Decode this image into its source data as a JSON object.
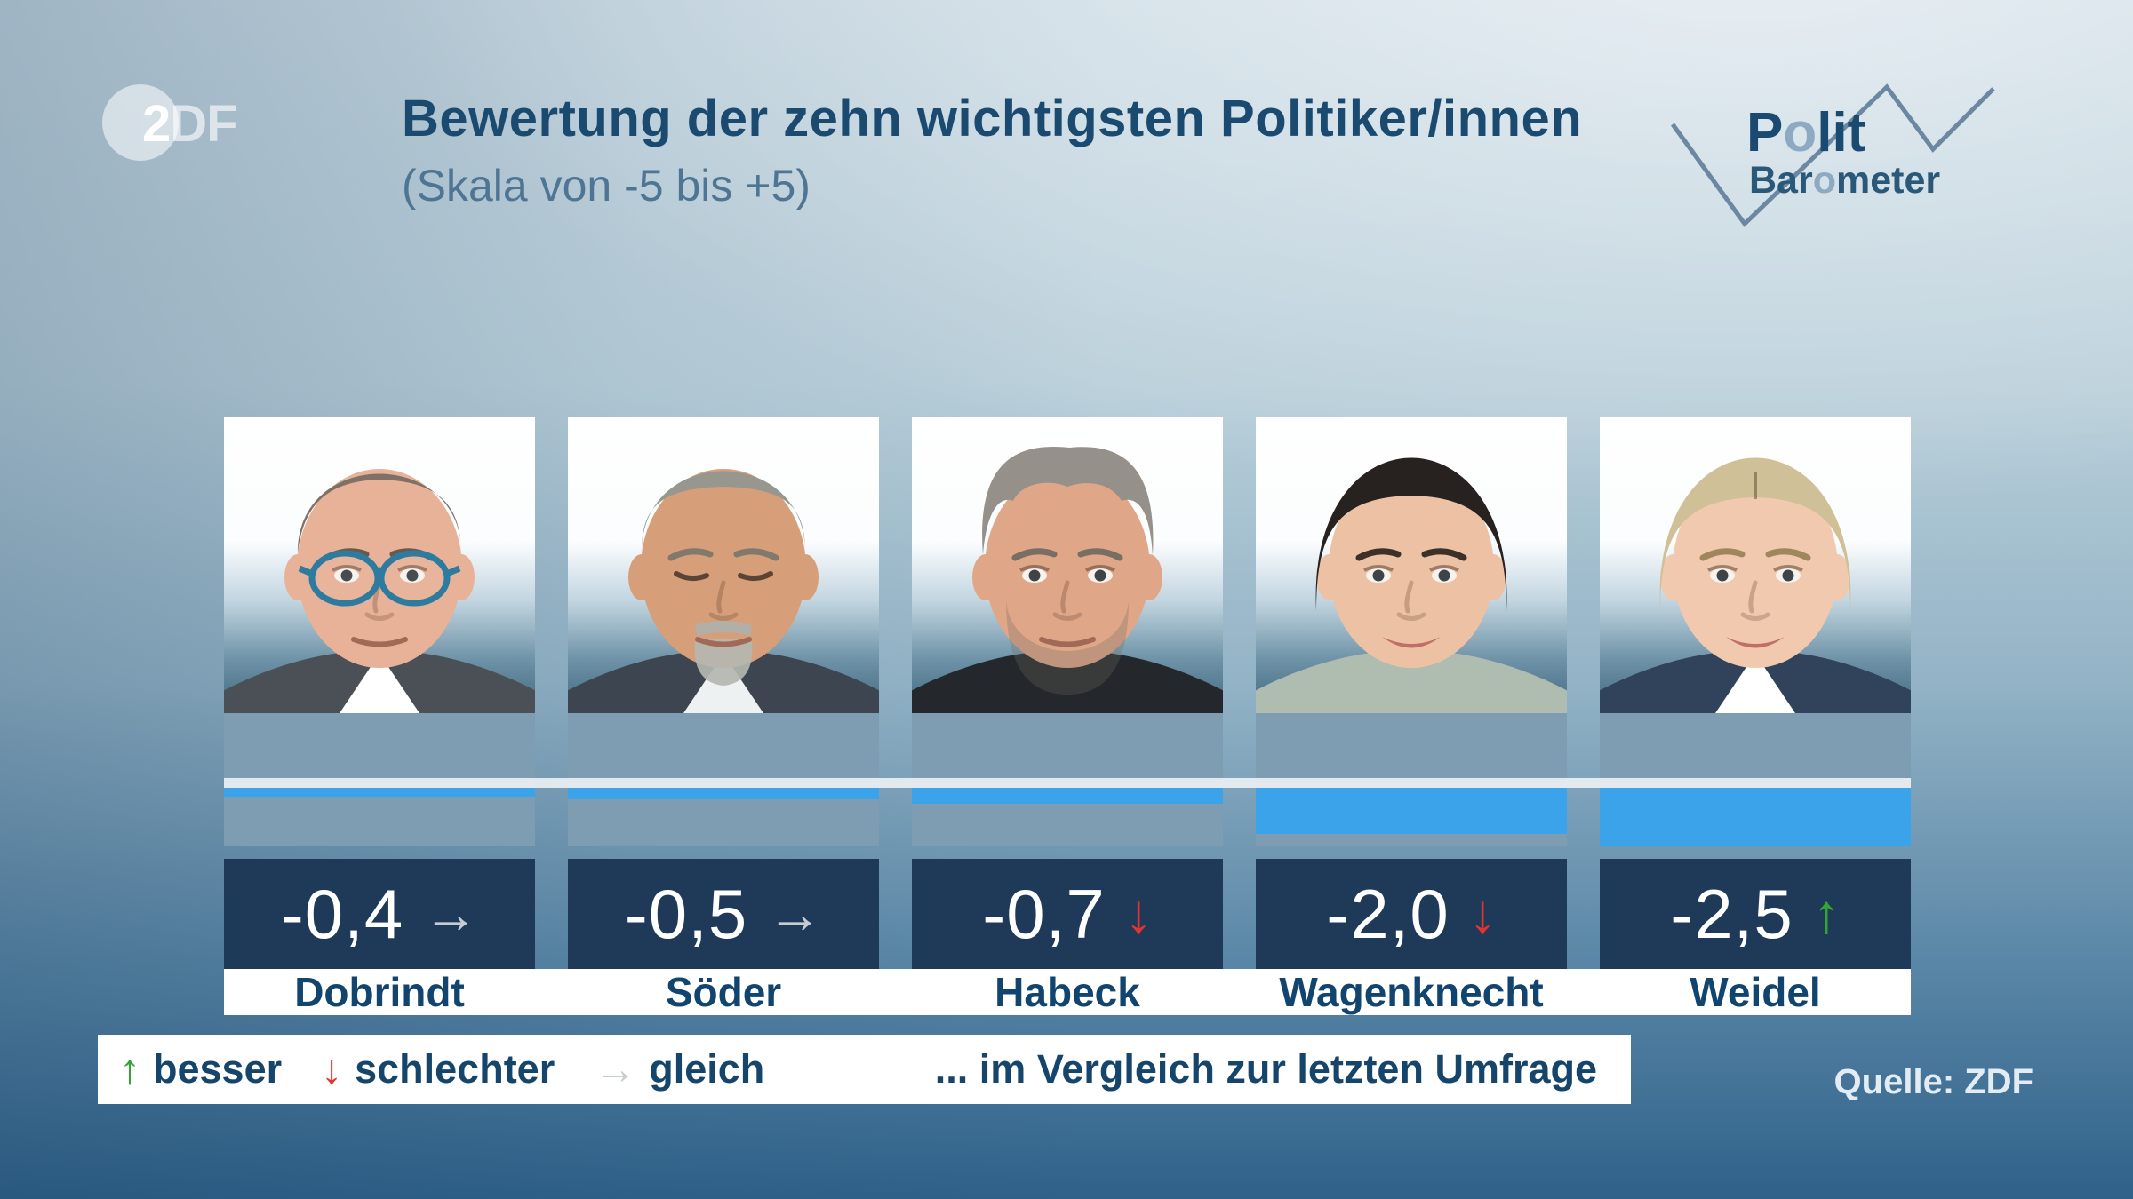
{
  "header": {
    "zdf": {
      "part_bold": "2",
      "part_light": "DF"
    },
    "title": "Bewertung der zehn wichtigsten Politiker/innen",
    "subtitle": "(Skala von -5 bis +5)",
    "brand": {
      "polit_pre": "P",
      "polit_o": "o",
      "polit_post": "lit",
      "baro_pre": "Bar",
      "baro_o": "o",
      "baro_post": "meter"
    }
  },
  "chart_data": {
    "type": "bar",
    "title": "Bewertung der zehn wichtigsten Politiker/innen",
    "subtitle": "(Skala von -5 bis +5)",
    "scale_range": [
      -5,
      5
    ],
    "bar_visible_range": [
      0,
      -2.5
    ],
    "categories": [
      "Dobrindt",
      "Söder",
      "Habeck",
      "Wagenknecht",
      "Weidel"
    ],
    "values": [
      -0.4,
      -0.5,
      -0.7,
      -2.0,
      -2.5
    ],
    "value_labels": [
      "-0,4",
      "-0,5",
      "-0,7",
      "-2,0",
      "-2,5"
    ],
    "trends": [
      "gleich",
      "gleich",
      "schlechter",
      "schlechter",
      "besser"
    ],
    "legend_position": "bottom"
  },
  "people": [
    {
      "name": "Dobrindt",
      "value_label": "-0,4",
      "value": -0.4,
      "trend": "same",
      "portrait": {
        "skin": "#e7b297",
        "hair": "#7f7165",
        "brow": "rgba(84,72,60,0.85)",
        "hairstyle": "receding",
        "top": "#4b5057",
        "shirt": "#ffffff",
        "glasses": true,
        "facial_hair": "none",
        "eyes": "open",
        "lips": false
      }
    },
    {
      "name": "Söder",
      "value_label": "-0,5",
      "value": -0.5,
      "trend": "same",
      "portrait": {
        "skin": "#d69e79",
        "hair": "#98978f",
        "brow": "rgba(120,116,106,0.9)",
        "hairstyle": "short",
        "top": "#3c4550",
        "shirt": "#eef1f2",
        "glasses": false,
        "facial_hair": "goatee",
        "eyes": "squint",
        "lips": false
      }
    },
    {
      "name": "Habeck",
      "value_label": "-0,7",
      "value": -0.7,
      "trend": "down",
      "portrait": {
        "skin": "#dfa688",
        "hair": "#96908a",
        "brow": "rgba(110,104,96,0.9)",
        "hairstyle": "tousled",
        "top": "#24282c",
        "shirt": null,
        "glasses": false,
        "facial_hair": "stubble",
        "eyes": "open",
        "lips": false
      }
    },
    {
      "name": "Wagenknecht",
      "value_label": "-2,0",
      "value": -2.0,
      "trend": "down",
      "portrait": {
        "skin": "#edc2a4",
        "hair": "#27211f",
        "brow": "rgba(40,32,28,0.9)",
        "hairstyle": "slicked",
        "top": "#afbcb0",
        "shirt": null,
        "glasses": false,
        "facial_hair": "none",
        "eyes": "open",
        "lips": true
      }
    },
    {
      "name": "Weidel",
      "value_label": "-2,5",
      "value": -2.5,
      "trend": "up",
      "portrait": {
        "skin": "#f1c9ae",
        "hair": "#cfc097",
        "brow": "rgba(150,128,84,0.9)",
        "hairstyle": "pulledback",
        "top": "#31435a",
        "shirt": "#ffffff",
        "glasses": false,
        "facial_hair": "none",
        "eyes": "open",
        "lips": true
      }
    }
  ],
  "legend": {
    "items": [
      {
        "glyph": "↑",
        "label": "besser",
        "type": "up"
      },
      {
        "glyph": "↓",
        "label": "schlechter",
        "type": "down"
      },
      {
        "glyph": "→",
        "label": "gleich",
        "type": "same"
      }
    ],
    "note": "... im Vergleich zur letzten Umfrage"
  },
  "source": "Quelle: ZDF",
  "colors": {
    "up": "#35a435",
    "down": "#e5332d",
    "same": "#c6ccd2",
    "bar": "#3aa3ea",
    "panel": "#7e9cb2",
    "zero_line": "#ffffff",
    "value_box": "#1e3a58",
    "navy_text": "#1b4a70",
    "name_text": "#11446e"
  }
}
